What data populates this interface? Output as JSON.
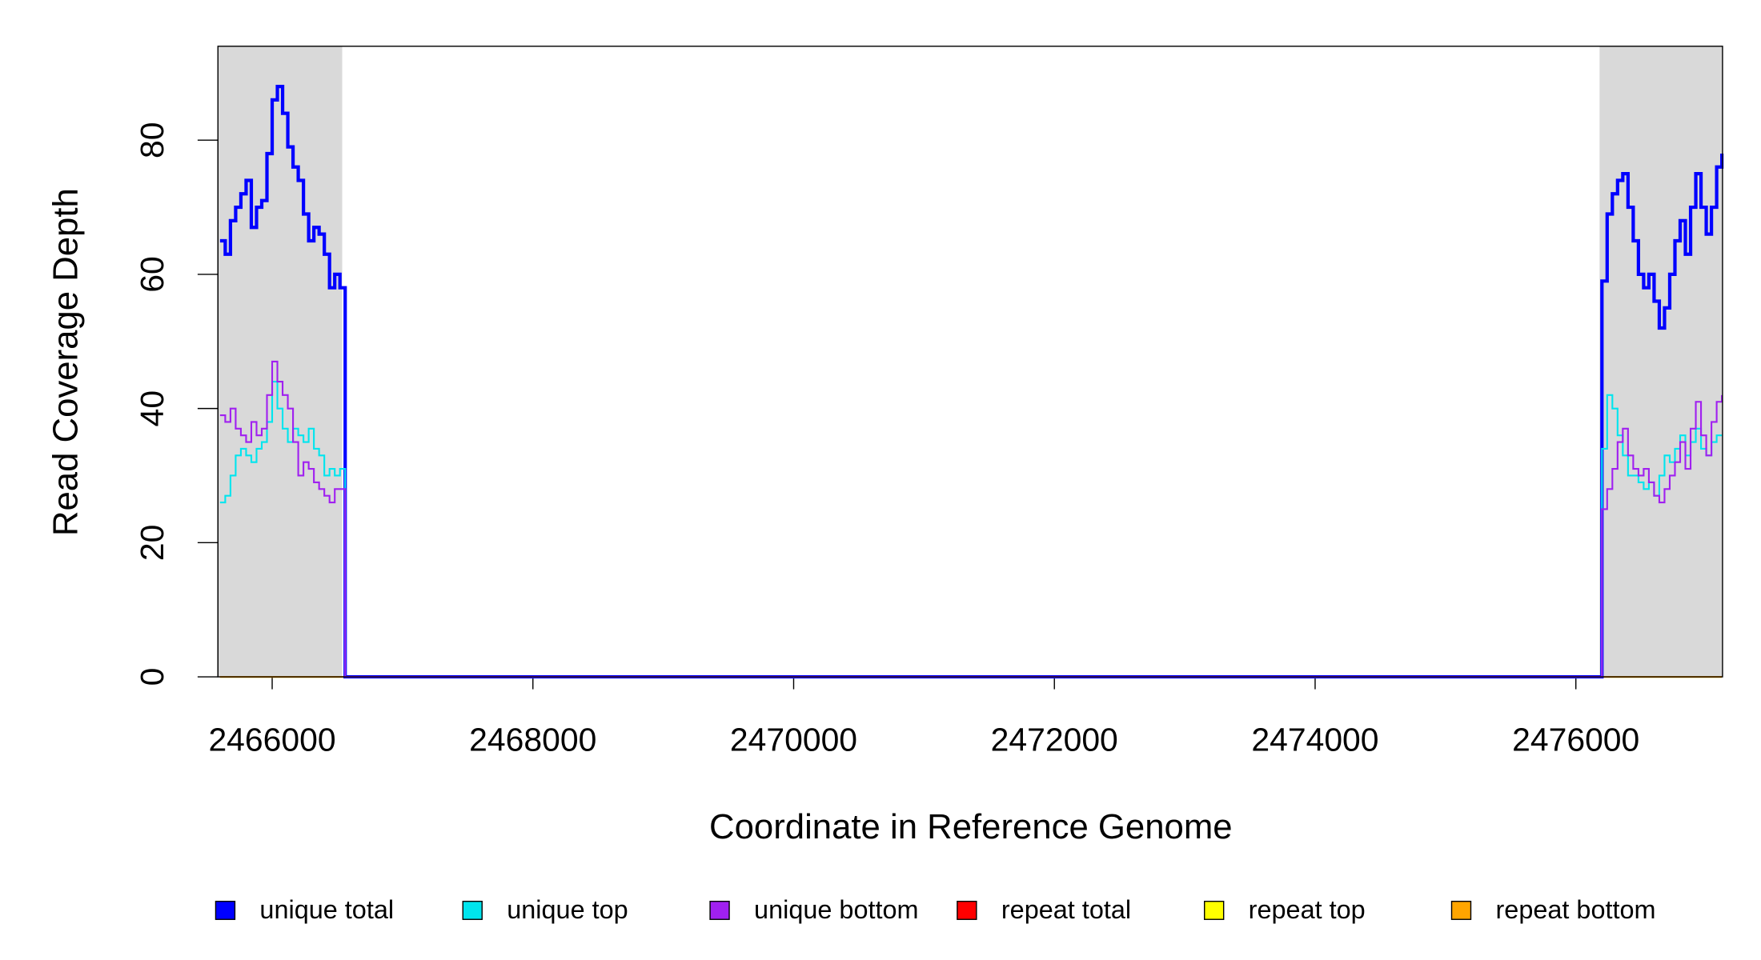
{
  "chart_data": {
    "type": "step",
    "x_label": "Coordinate in Reference Genome",
    "y_label": "Read Coverage Depth",
    "xlim": [
      2465584,
      2477125
    ],
    "ylim": [
      0,
      94
    ],
    "xticks": [
      2466000,
      2468000,
      2470000,
      2472000,
      2474000,
      2476000
    ],
    "yticks": [
      0,
      20,
      40,
      60,
      80
    ],
    "legend": "bottom",
    "highlight_color": "#d9d9d9",
    "highlight_regions": [
      [
        2465584,
        2466537
      ],
      [
        2476182,
        2477125
      ]
    ],
    "x": [
      2465600,
      2465640,
      2465680,
      2465720,
      2465760,
      2465800,
      2465840,
      2465880,
      2465920,
      2465960,
      2466000,
      2466040,
      2466080,
      2466120,
      2466160,
      2466200,
      2466240,
      2466280,
      2466320,
      2466360,
      2466400,
      2466440,
      2466480,
      2466520,
      2466560,
      2476160,
      2476200,
      2476240,
      2476280,
      2476320,
      2476360,
      2476400,
      2476440,
      2476480,
      2476520,
      2476560,
      2476600,
      2476640,
      2476680,
      2476720,
      2476760,
      2476800,
      2476840,
      2476880,
      2476920,
      2476960,
      2477000,
      2477040,
      2477080,
      2477120
    ],
    "series": [
      {
        "name": "repeat total",
        "color": "#ff0000",
        "width": 1.5,
        "values": [
          0,
          0,
          0,
          0,
          0,
          0,
          0,
          0,
          0,
          0,
          0,
          0,
          0,
          0,
          0,
          0,
          0,
          0,
          0,
          0,
          0,
          0,
          0,
          0,
          0,
          0,
          0,
          0,
          0,
          0,
          0,
          0,
          0,
          0,
          0,
          0,
          0,
          0,
          0,
          0,
          0,
          0,
          0,
          0,
          0,
          0,
          0,
          0,
          0,
          0
        ]
      },
      {
        "name": "repeat top",
        "color": "#ffff00",
        "width": 1.5,
        "values": [
          0,
          0,
          0,
          0,
          0,
          0,
          0,
          0,
          0,
          0,
          0,
          0,
          0,
          0,
          0,
          0,
          0,
          0,
          0,
          0,
          0,
          0,
          0,
          0,
          0,
          0,
          0,
          0,
          0,
          0,
          0,
          0,
          0,
          0,
          0,
          0,
          0,
          0,
          0,
          0,
          0,
          0,
          0,
          0,
          0,
          0,
          0,
          0,
          0,
          0
        ]
      },
      {
        "name": "repeat bottom",
        "color": "#ffa500",
        "width": 1.5,
        "values": [
          0,
          0,
          0,
          0,
          0,
          0,
          0,
          0,
          0,
          0,
          0,
          0,
          0,
          0,
          0,
          0,
          0,
          0,
          0,
          0,
          0,
          0,
          0,
          0,
          0,
          0,
          0,
          0,
          0,
          0,
          0,
          0,
          0,
          0,
          0,
          0,
          0,
          0,
          0,
          0,
          0,
          0,
          0,
          0,
          0,
          0,
          0,
          0,
          0,
          0
        ]
      },
      {
        "name": "unique total",
        "color": "#0000ff",
        "width": 3,
        "values": [
          65,
          63,
          68,
          70,
          72,
          74,
          67,
          70,
          71,
          78,
          86,
          88,
          84,
          79,
          76,
          74,
          69,
          65,
          67,
          66,
          63,
          58,
          60,
          58,
          0,
          0,
          59,
          69,
          72,
          74,
          75,
          70,
          65,
          60,
          58,
          60,
          56,
          52,
          55,
          60,
          65,
          68,
          63,
          70,
          75,
          70,
          66,
          70,
          76,
          78
        ]
      },
      {
        "name": "unique top",
        "color": "#00e5ee",
        "width": 1.5,
        "values": [
          26,
          27,
          30,
          33,
          34,
          33,
          32,
          34,
          35,
          38,
          44,
          40,
          37,
          35,
          37,
          36,
          35,
          37,
          34,
          33,
          30,
          31,
          30,
          31,
          0,
          0,
          34,
          42,
          40,
          36,
          33,
          30,
          30,
          29,
          28,
          29,
          27,
          30,
          33,
          32,
          34,
          36,
          33,
          35,
          37,
          34,
          33,
          35,
          36,
          36
        ]
      },
      {
        "name": "unique bottom",
        "color": "#a020f0",
        "width": 1.5,
        "values": [
          39,
          38,
          40,
          37,
          36,
          35,
          38,
          36,
          37,
          42,
          47,
          44,
          42,
          40,
          35,
          30,
          32,
          31,
          29,
          28,
          27,
          26,
          28,
          28,
          0,
          0,
          25,
          28,
          31,
          35,
          37,
          33,
          31,
          30,
          31,
          29,
          27,
          26,
          28,
          30,
          32,
          35,
          31,
          37,
          41,
          36,
          33,
          38,
          41,
          42
        ]
      }
    ],
    "legend_order": [
      3,
      4,
      5,
      0,
      1,
      2
    ]
  }
}
